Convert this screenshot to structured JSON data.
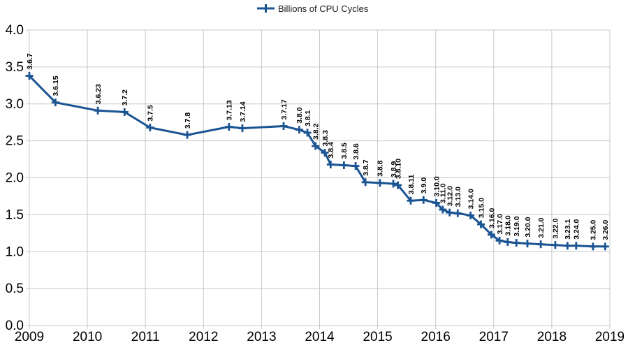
{
  "chart_data": {
    "type": "line",
    "title": "",
    "xlabel": "",
    "ylabel": "",
    "legend": {
      "position": "top-center",
      "entries": [
        "Billions of CPU Cycles"
      ]
    },
    "xlim": [
      2009,
      2019
    ],
    "ylim": [
      0.0,
      4.0
    ],
    "xticks": [
      2009,
      2010,
      2011,
      2012,
      2013,
      2014,
      2015,
      2016,
      2017,
      2018,
      2019
    ],
    "ytick_labels": [
      "0.0",
      "0.5",
      "1.0",
      "1.5",
      "2.0",
      "2.5",
      "3.0",
      "3.5",
      "4.0"
    ],
    "grid": true,
    "marker": "plus",
    "colors": {
      "series": "#1a5492",
      "grid": "#c8c8c8",
      "axis_text": "#000000",
      "label_text": "#000000",
      "background": "#ffffff"
    },
    "series": [
      {
        "name": "Billions of CPU Cycles",
        "points": [
          {
            "version": "3.6.7",
            "x": 2009.0,
            "cycles": 3.38
          },
          {
            "version": "3.6.15",
            "x": 2009.45,
            "cycles": 3.02
          },
          {
            "version": "3.6.23",
            "x": 2010.18,
            "cycles": 2.91
          },
          {
            "version": "3.7.2",
            "x": 2010.64,
            "cycles": 2.89
          },
          {
            "version": "3.7.5",
            "x": 2011.08,
            "cycles": 2.68
          },
          {
            "version": "3.7.8",
            "x": 2011.72,
            "cycles": 2.58
          },
          {
            "version": "3.7.13",
            "x": 2012.44,
            "cycles": 2.69
          },
          {
            "version": "3.7.14",
            "x": 2012.67,
            "cycles": 2.67
          },
          {
            "version": "3.7.17",
            "x": 2013.38,
            "cycles": 2.7
          },
          {
            "version": "3.8.0",
            "x": 2013.65,
            "cycles": 2.65
          },
          {
            "version": "3.8.1",
            "x": 2013.79,
            "cycles": 2.61
          },
          {
            "version": "3.8.2",
            "x": 2013.93,
            "cycles": 2.43
          },
          {
            "version": "3.8.3",
            "x": 2014.09,
            "cycles": 2.34
          },
          {
            "version": "3.8.4",
            "x": 2014.19,
            "cycles": 2.18
          },
          {
            "version": "3.8.5",
            "x": 2014.42,
            "cycles": 2.17
          },
          {
            "version": "3.8.6",
            "x": 2014.62,
            "cycles": 2.16
          },
          {
            "version": "3.8.7",
            "x": 2014.79,
            "cycles": 1.94
          },
          {
            "version": "3.8.8",
            "x": 2015.04,
            "cycles": 1.93
          },
          {
            "version": "3.8.9",
            "x": 2015.27,
            "cycles": 1.92
          },
          {
            "version": "3.8.10",
            "x": 2015.35,
            "cycles": 1.9
          },
          {
            "version": "3.8.11",
            "x": 2015.57,
            "cycles": 1.69
          },
          {
            "version": "3.9.0",
            "x": 2015.79,
            "cycles": 1.7
          },
          {
            "version": "3.10.0",
            "x": 2016.01,
            "cycles": 1.66
          },
          {
            "version": "3.11.0",
            "x": 2016.12,
            "cycles": 1.57
          },
          {
            "version": "3.12.0",
            "x": 2016.24,
            "cycles": 1.53
          },
          {
            "version": "3.13.0",
            "x": 2016.38,
            "cycles": 1.52
          },
          {
            "version": "3.14.0",
            "x": 2016.6,
            "cycles": 1.49
          },
          {
            "version": "3.15.0",
            "x": 2016.78,
            "cycles": 1.37
          },
          {
            "version": "3.16.0",
            "x": 2016.96,
            "cycles": 1.23
          },
          {
            "version": "3.17.0",
            "x": 2017.1,
            "cycles": 1.15
          },
          {
            "version": "3.18.0",
            "x": 2017.24,
            "cycles": 1.13
          },
          {
            "version": "3.19.0",
            "x": 2017.39,
            "cycles": 1.12
          },
          {
            "version": "3.20.0",
            "x": 2017.58,
            "cycles": 1.11
          },
          {
            "version": "3.21.0",
            "x": 2017.81,
            "cycles": 1.1
          },
          {
            "version": "3.22.0",
            "x": 2018.06,
            "cycles": 1.09
          },
          {
            "version": "3.23.1",
            "x": 2018.27,
            "cycles": 1.08
          },
          {
            "version": "3.24.0",
            "x": 2018.42,
            "cycles": 1.08
          },
          {
            "version": "3.25.0",
            "x": 2018.71,
            "cycles": 1.07
          },
          {
            "version": "3.26.0",
            "x": 2018.92,
            "cycles": 1.07
          }
        ]
      }
    ]
  }
}
